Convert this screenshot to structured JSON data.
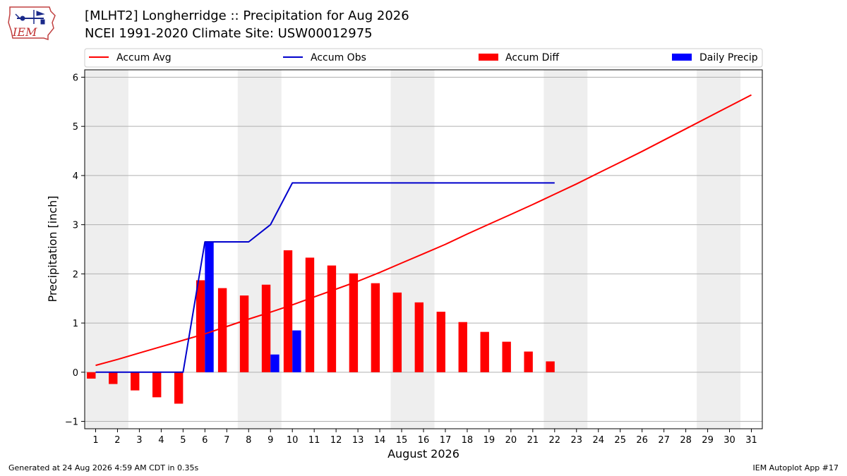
{
  "header": {
    "title_line1": "[MLHT2] Longherridge :: Precipitation for Aug 2026",
    "title_line2": "NCEI 1991-2020 Climate Site: USW00012975",
    "logo_text": "IEM"
  },
  "footer": {
    "left": "Generated at 24 Aug 2026 4:59 AM CDT in 0.35s",
    "right": "IEM Autoplot App #17"
  },
  "colors": {
    "accum_avg": "#ff0000",
    "accum_obs": "#0000cc",
    "accum_diff": "#ff0000",
    "daily_precip": "#0000ff",
    "weekend_shade": "#eeeeee",
    "grid": "#b0b0b0"
  },
  "chart_data": {
    "type": "bar",
    "xlabel": "August 2026",
    "ylabel": "Precipitation [inch]",
    "xlim": [
      0.5,
      31.5
    ],
    "ylim": [
      -1.15,
      6.15
    ],
    "yticks": [
      -1,
      0,
      1,
      2,
      3,
      4,
      5,
      6
    ],
    "x": [
      1,
      2,
      3,
      4,
      5,
      6,
      7,
      8,
      9,
      10,
      11,
      12,
      13,
      14,
      15,
      16,
      17,
      18,
      19,
      20,
      21,
      22,
      23,
      24,
      25,
      26,
      27,
      28,
      29,
      30,
      31
    ],
    "shaded_days": [
      [
        1,
        2
      ],
      [
        8,
        9
      ],
      [
        15,
        16
      ],
      [
        22,
        23
      ],
      [
        29,
        30
      ]
    ],
    "legend": [
      "Accum Avg",
      "Accum Obs",
      "Accum Diff",
      "Daily Precip"
    ],
    "legend_position": "top",
    "grid": "horizontal",
    "series": [
      {
        "name": "Accum Avg",
        "kind": "line",
        "x": [
          1,
          2,
          3,
          4,
          5,
          6,
          7,
          8,
          9,
          10,
          11,
          12,
          13,
          14,
          15,
          16,
          17,
          18,
          19,
          20,
          21,
          22,
          23,
          24,
          25,
          26,
          27,
          28,
          29,
          30,
          31
        ],
        "values": [
          0.14,
          0.26,
          0.39,
          0.52,
          0.65,
          0.78,
          0.93,
          1.08,
          1.22,
          1.37,
          1.53,
          1.69,
          1.85,
          2.03,
          2.22,
          2.41,
          2.6,
          2.81,
          3.01,
          3.21,
          3.41,
          3.62,
          3.83,
          4.05,
          4.27,
          4.49,
          4.72,
          4.95,
          5.18,
          5.41,
          5.64
        ]
      },
      {
        "name": "Accum Obs",
        "kind": "line",
        "x": [
          1,
          2,
          3,
          4,
          5,
          6,
          7,
          8,
          9,
          10,
          11,
          12,
          13,
          14,
          15,
          16,
          17,
          18,
          19,
          20,
          21,
          22
        ],
        "values": [
          0,
          0,
          0,
          0,
          0,
          2.65,
          2.65,
          2.65,
          3.0,
          3.85,
          3.85,
          3.85,
          3.85,
          3.85,
          3.85,
          3.85,
          3.85,
          3.85,
          3.85,
          3.85,
          3.85,
          3.85
        ]
      },
      {
        "name": "Accum Diff",
        "kind": "bar",
        "x": [
          1,
          2,
          3,
          4,
          5,
          6,
          7,
          8,
          9,
          10,
          11,
          12,
          13,
          14,
          15,
          16,
          17,
          18,
          19,
          20,
          21,
          22
        ],
        "values": [
          -0.13,
          -0.24,
          -0.37,
          -0.51,
          -0.64,
          1.87,
          1.71,
          1.56,
          1.78,
          2.48,
          2.33,
          2.17,
          2.01,
          1.81,
          1.62,
          1.42,
          1.23,
          1.02,
          0.82,
          0.62,
          0.42,
          0.22
        ]
      },
      {
        "name": "Daily Precip",
        "kind": "bar",
        "x": [
          6,
          9,
          10
        ],
        "values": [
          2.65,
          0.36,
          0.85
        ]
      }
    ]
  }
}
